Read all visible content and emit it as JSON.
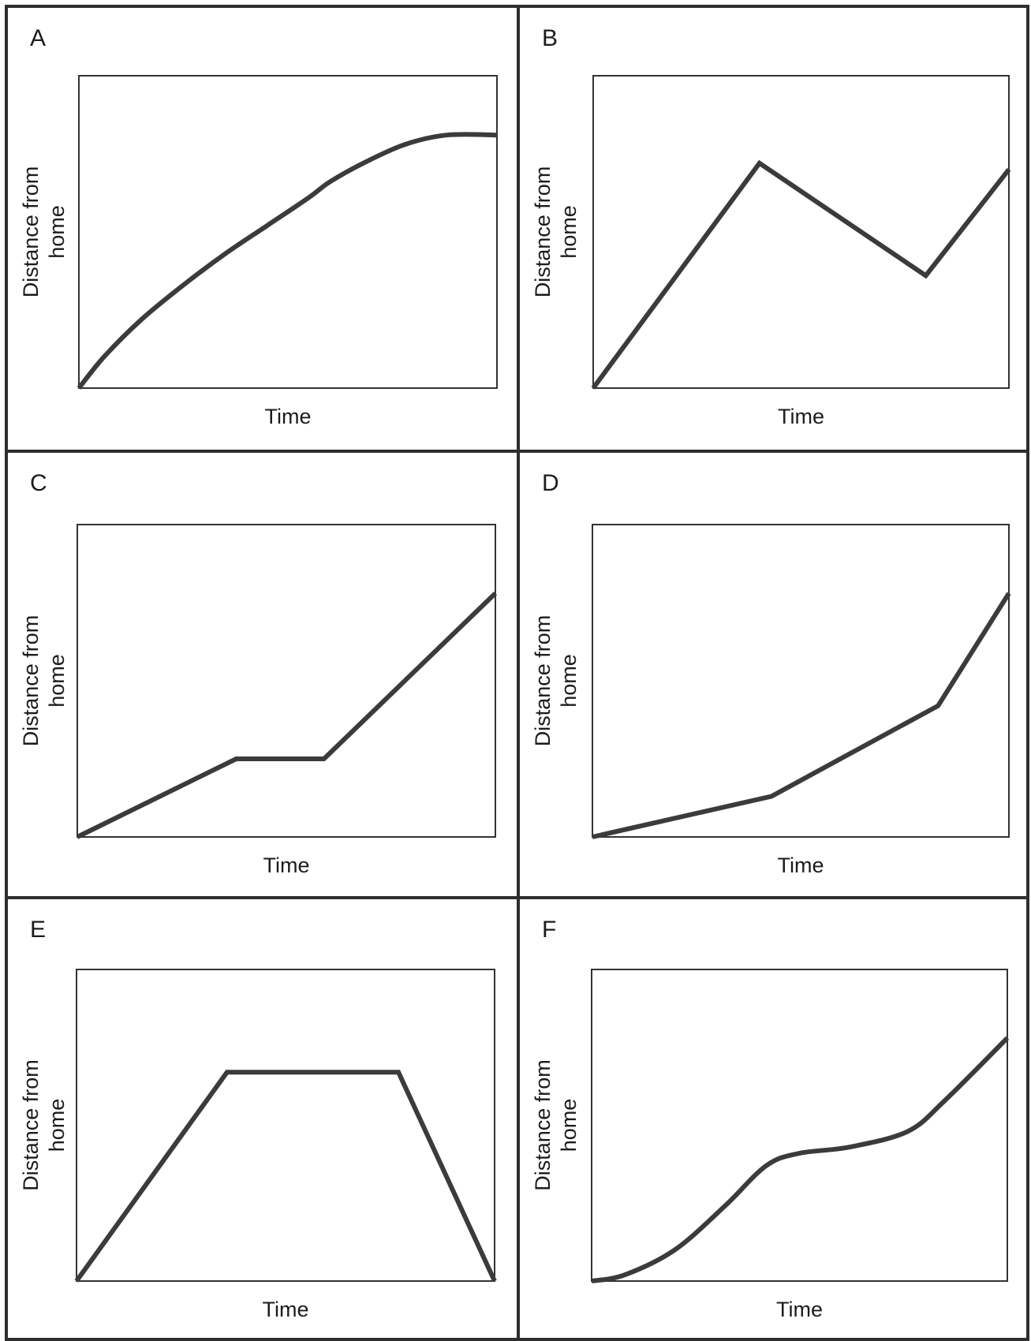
{
  "chart_data": [
    {
      "type": "line",
      "panel_label": "A",
      "xlabel": "Time",
      "ylabel_lines": [
        "Distance from",
        "home"
      ],
      "curve": "smooth",
      "xlim": [
        0,
        1
      ],
      "ylim": [
        0,
        1
      ],
      "x": [
        0,
        0.06,
        0.15,
        0.25,
        0.35,
        0.45,
        0.55,
        0.6,
        0.68,
        0.78,
        0.88,
        1.0
      ],
      "y": [
        0,
        0.1,
        0.22,
        0.33,
        0.43,
        0.52,
        0.61,
        0.66,
        0.72,
        0.78,
        0.81,
        0.81
      ]
    },
    {
      "type": "line",
      "panel_label": "B",
      "xlabel": "Time",
      "ylabel_lines": [
        "Distance from",
        "home"
      ],
      "curve": "linear",
      "xlim": [
        0,
        1
      ],
      "ylim": [
        0,
        1
      ],
      "x": [
        0,
        0.4,
        0.8,
        1.0
      ],
      "y": [
        0,
        0.72,
        0.36,
        0.7
      ]
    },
    {
      "type": "line",
      "panel_label": "C",
      "xlabel": "Time",
      "ylabel_lines": [
        "Distance from",
        "home"
      ],
      "curve": "linear",
      "xlim": [
        0,
        1
      ],
      "ylim": [
        0,
        1
      ],
      "x": [
        0,
        0.38,
        0.59,
        1.0
      ],
      "y": [
        0,
        0.25,
        0.25,
        0.78
      ]
    },
    {
      "type": "line",
      "panel_label": "D",
      "xlabel": "Time",
      "ylabel_lines": [
        "Distance from",
        "home"
      ],
      "curve": "linear",
      "xlim": [
        0,
        1
      ],
      "ylim": [
        0,
        1
      ],
      "x": [
        0,
        0.43,
        0.83,
        1.0
      ],
      "y": [
        0,
        0.13,
        0.42,
        0.78
      ]
    },
    {
      "type": "line",
      "panel_label": "E",
      "xlabel": "Time",
      "ylabel_lines": [
        "Distance from",
        "home"
      ],
      "curve": "linear",
      "xlim": [
        0,
        1
      ],
      "ylim": [
        0,
        1
      ],
      "x": [
        0,
        0.36,
        0.77,
        1.0
      ],
      "y": [
        0,
        0.67,
        0.67,
        0
      ]
    },
    {
      "type": "line",
      "panel_label": "F",
      "xlabel": "Time",
      "ylabel_lines": [
        "Distance from",
        "home"
      ],
      "curve": "smooth",
      "xlim": [
        0,
        1
      ],
      "ylim": [
        0,
        1
      ],
      "x": [
        0,
        0.08,
        0.2,
        0.32,
        0.42,
        0.5,
        0.62,
        0.76,
        0.85,
        1.0
      ],
      "y": [
        0,
        0.02,
        0.1,
        0.24,
        0.37,
        0.41,
        0.43,
        0.48,
        0.58,
        0.78
      ]
    }
  ],
  "style": {
    "line_color": "#3b3b3b",
    "frame_color": "#2e2e2e",
    "axes_color": "#333333",
    "text_color": "#1c1c1c",
    "background": "#ffffff"
  }
}
